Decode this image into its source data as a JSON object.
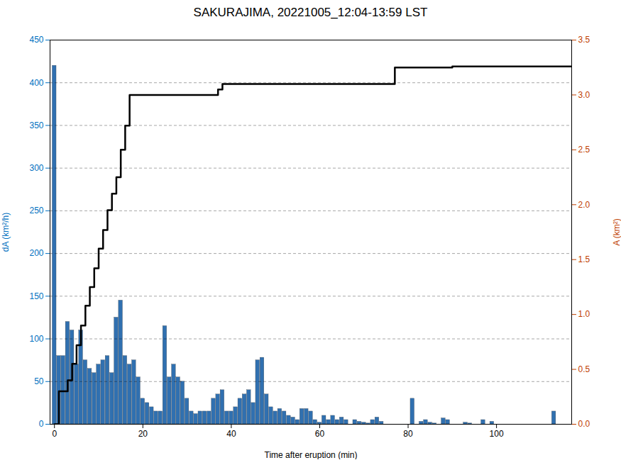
{
  "chart_data": {
    "type": "bar",
    "title": "SAKURAJIMA, 20221005_12:04-13:59 LST",
    "xlabel": "Time after eruption (min)",
    "ylabel": "dA (km²/h)",
    "y2label": "A (km²)",
    "x": [
      0,
      1,
      2,
      3,
      4,
      5,
      6,
      7,
      8,
      9,
      10,
      11,
      12,
      13,
      14,
      15,
      16,
      17,
      18,
      19,
      20,
      21,
      22,
      23,
      24,
      25,
      26,
      27,
      28,
      29,
      30,
      31,
      32,
      33,
      34,
      35,
      36,
      37,
      38,
      39,
      40,
      41,
      42,
      43,
      44,
      45,
      46,
      47,
      48,
      49,
      50,
      51,
      52,
      53,
      54,
      55,
      56,
      57,
      58,
      59,
      60,
      61,
      62,
      63,
      64,
      65,
      66,
      67,
      68,
      69,
      70,
      71,
      72,
      73,
      74,
      75,
      76,
      77,
      78,
      79,
      80,
      81,
      82,
      83,
      84,
      85,
      86,
      87,
      88,
      89,
      90,
      91,
      92,
      93,
      94,
      95,
      96,
      97,
      98,
      99,
      100,
      101,
      102,
      103,
      104,
      105,
      106,
      107,
      108,
      109,
      110,
      111,
      112,
      113,
      114,
      115
    ],
    "series": [
      {
        "type": "bar",
        "color": "#3070b0",
        "values": [
          420,
          80,
          80,
          120,
          110,
          70,
          110,
          75,
          65,
          60,
          70,
          75,
          80,
          60,
          125,
          145,
          80,
          70,
          75,
          55,
          30,
          25,
          20,
          15,
          15,
          115,
          55,
          70,
          55,
          50,
          30,
          15,
          12,
          15,
          15,
          15,
          30,
          35,
          40,
          15,
          15,
          20,
          30,
          35,
          40,
          25,
          75,
          78,
          35,
          20,
          15,
          18,
          15,
          10,
          8,
          5,
          18,
          18,
          15,
          5,
          2,
          10,
          5,
          10,
          5,
          8,
          5,
          0,
          5,
          3,
          2,
          1,
          5,
          8,
          3,
          0,
          0,
          0,
          0,
          0,
          0,
          30,
          0,
          3,
          5,
          2,
          1,
          0,
          7,
          5,
          0,
          0,
          0,
          2,
          1,
          0,
          0,
          5,
          0,
          3,
          0,
          0,
          0,
          0,
          0,
          0,
          0,
          0,
          0,
          0,
          0,
          0,
          0,
          15,
          0,
          0
        ]
      },
      {
        "type": "line",
        "axis": "y2",
        "color": "black",
        "x": [
          0,
          1,
          1,
          3,
          3,
          4,
          4,
          5,
          5,
          6,
          6,
          7,
          7,
          8,
          8,
          9,
          9,
          10,
          10,
          11,
          11,
          12,
          12,
          13,
          13,
          14,
          14,
          15,
          15,
          16,
          16,
          17,
          17,
          37,
          37,
          38,
          38,
          77,
          77,
          90,
          90,
          117
        ],
        "values": [
          0.0,
          0.0,
          0.3,
          0.3,
          0.4,
          0.4,
          0.55,
          0.55,
          0.72,
          0.72,
          0.9,
          0.9,
          1.08,
          1.08,
          1.25,
          1.25,
          1.42,
          1.42,
          1.6,
          1.6,
          1.77,
          1.77,
          1.95,
          1.95,
          2.1,
          2.1,
          2.25,
          2.25,
          2.5,
          2.5,
          2.72,
          2.72,
          3.0,
          3.0,
          3.05,
          3.05,
          3.1,
          3.1,
          3.25,
          3.25,
          3.26,
          3.26
        ]
      }
    ],
    "xlim": [
      -1,
      117
    ],
    "xticks": [
      0,
      20,
      40,
      60,
      80,
      100
    ],
    "ylim": [
      0,
      450
    ],
    "yticks": [
      0,
      50,
      100,
      150,
      200,
      250,
      300,
      350,
      400,
      450
    ],
    "y2lim": [
      0,
      3.5
    ],
    "y2ticks": [
      {
        "value": 0,
        "label": "0.0"
      },
      0.5,
      {
        "value": 1,
        "label": "1.0"
      },
      1.5,
      {
        "value": 2,
        "label": "2.0"
      },
      2.5,
      {
        "value": 3,
        "label": "3.0"
      },
      3.5
    ],
    "grid": true
  }
}
